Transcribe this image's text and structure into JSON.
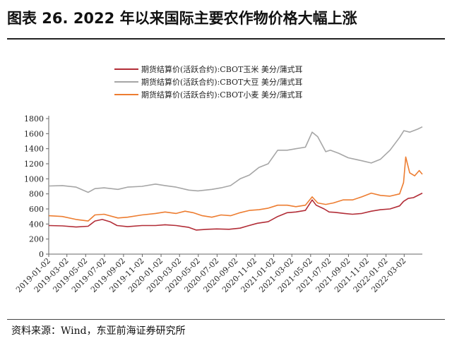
{
  "header": {
    "title": "图表 26. 2022 年以来国际主要农作物价格大幅上涨"
  },
  "footer": {
    "source": "资料来源：Wind，东亚前海证券研究所"
  },
  "colors": {
    "corn": "#b22d37",
    "soybean": "#a6a6a6",
    "wheat": "#ed7d31",
    "axis": "#666666"
  },
  "chart_data": {
    "type": "line",
    "title": "",
    "xlabel": "",
    "ylabel": "",
    "ylim": [
      0,
      1800
    ],
    "yticks": [
      0,
      200,
      400,
      600,
      800,
      1000,
      1200,
      1400,
      1600,
      1800
    ],
    "xticks": [
      "2019-01-02",
      "2019-03-02",
      "2019-05-02",
      "2019-07-02",
      "2019-09-02",
      "2019-11-02",
      "2020-01-02",
      "2020-03-02",
      "2020-05-02",
      "2020-07-02",
      "2020-09-02",
      "2020-11-02",
      "2021-01-02",
      "2021-03-02",
      "2021-05-02",
      "2021-07-02",
      "2021-09-02",
      "2021-11-02",
      "2022-01-02",
      "2022-03-02"
    ],
    "xlim": [
      "2019-01-02",
      "2022-04-30"
    ],
    "legend_position": "top-center",
    "grid": false,
    "series": [
      {
        "name": "期货结算价(活跃合约):CBOT玉米 美分/蒲式耳",
        "color": "#b22d37",
        "x": [
          "2019-01-02",
          "2019-02-15",
          "2019-04-01",
          "2019-05-10",
          "2019-06-01",
          "2019-06-25",
          "2019-07-20",
          "2019-08-12",
          "2019-09-15",
          "2019-11-01",
          "2019-12-15",
          "2020-01-15",
          "2020-02-20",
          "2020-04-01",
          "2020-04-25",
          "2020-06-01",
          "2020-07-01",
          "2020-08-10",
          "2020-09-15",
          "2020-10-10",
          "2020-11-10",
          "2020-12-15",
          "2021-01-15",
          "2021-02-15",
          "2021-03-15",
          "2021-04-15",
          "2021-05-07",
          "2021-05-20",
          "2021-06-15",
          "2021-07-01",
          "2021-07-20",
          "2021-08-20",
          "2021-09-15",
          "2021-10-15",
          "2021-11-15",
          "2021-12-15",
          "2022-01-15",
          "2022-02-15",
          "2022-02-28",
          "2022-03-15",
          "2022-04-01",
          "2022-04-30"
        ],
        "values": [
          380,
          375,
          360,
          370,
          440,
          460,
          430,
          380,
          365,
          380,
          380,
          390,
          380,
          355,
          320,
          330,
          335,
          330,
          345,
          375,
          410,
          430,
          500,
          550,
          560,
          580,
          720,
          650,
          600,
          560,
          555,
          540,
          530,
          540,
          570,
          590,
          600,
          640,
          700,
          740,
          750,
          810
        ]
      },
      {
        "name": "期货结算价(活跃合约):CBOT大豆 美分/蒲式耳",
        "color": "#a6a6a6",
        "x": [
          "2019-01-02",
          "2019-02-15",
          "2019-04-01",
          "2019-05-10",
          "2019-06-01",
          "2019-07-01",
          "2019-08-15",
          "2019-09-15",
          "2019-11-01",
          "2019-12-15",
          "2020-01-15",
          "2020-02-20",
          "2020-04-01",
          "2020-05-01",
          "2020-06-15",
          "2020-07-15",
          "2020-08-15",
          "2020-09-15",
          "2020-10-15",
          "2020-11-15",
          "2020-12-15",
          "2021-01-15",
          "2021-02-15",
          "2021-03-15",
          "2021-04-15",
          "2021-05-07",
          "2021-05-25",
          "2021-06-20",
          "2021-07-05",
          "2021-08-01",
          "2021-09-01",
          "2021-10-15",
          "2021-11-15",
          "2021-12-15",
          "2022-01-15",
          "2022-02-15",
          "2022-03-01",
          "2022-03-20",
          "2022-04-15",
          "2022-04-30"
        ],
        "values": [
          905,
          910,
          890,
          820,
          870,
          880,
          860,
          890,
          900,
          930,
          910,
          890,
          850,
          840,
          860,
          880,
          910,
          1000,
          1050,
          1150,
          1200,
          1380,
          1380,
          1400,
          1420,
          1620,
          1560,
          1360,
          1380,
          1340,
          1280,
          1240,
          1210,
          1260,
          1380,
          1550,
          1640,
          1620,
          1660,
          1690
        ]
      },
      {
        "name": "期货结算价(活跃合约):CBOT小麦 美分/蒲式耳",
        "color": "#ed7d31",
        "x": [
          "2019-01-02",
          "2019-02-15",
          "2019-04-01",
          "2019-05-10",
          "2019-06-01",
          "2019-07-01",
          "2019-08-15",
          "2019-09-15",
          "2019-11-01",
          "2019-12-15",
          "2020-01-15",
          "2020-02-20",
          "2020-03-20",
          "2020-04-15",
          "2020-05-15",
          "2020-06-15",
          "2020-07-15",
          "2020-08-15",
          "2020-09-15",
          "2020-10-15",
          "2020-11-15",
          "2020-12-15",
          "2021-01-15",
          "2021-02-15",
          "2021-03-15",
          "2021-04-15",
          "2021-05-07",
          "2021-05-25",
          "2021-06-20",
          "2021-07-15",
          "2021-08-15",
          "2021-09-15",
          "2021-10-15",
          "2021-11-15",
          "2021-12-15",
          "2022-01-15",
          "2022-02-15",
          "2022-02-28",
          "2022-03-07",
          "2022-03-20",
          "2022-04-05",
          "2022-04-20",
          "2022-04-30"
        ],
        "values": [
          510,
          500,
          460,
          440,
          520,
          530,
          480,
          490,
          520,
          540,
          560,
          540,
          570,
          550,
          510,
          490,
          520,
          510,
          550,
          580,
          590,
          610,
          650,
          650,
          630,
          650,
          760,
          680,
          660,
          680,
          720,
          720,
          760,
          810,
          780,
          770,
          800,
          950,
          1290,
          1080,
          1040,
          1110,
          1060
        ]
      }
    ]
  }
}
